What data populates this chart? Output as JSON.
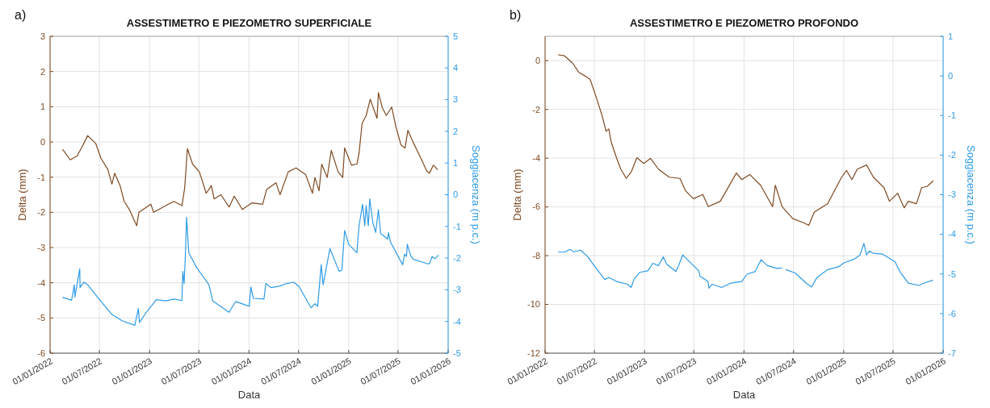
{
  "chart_data": [
    {
      "type": "line",
      "title": "ASSESTIMETRO E PIEZOMETRO SUPERFICIALE",
      "xlabel": "Data",
      "ylabel": "Delta (mm)",
      "y2label": "Soggiacenza (m p.c.)",
      "annotations": [
        "a)"
      ],
      "grid": true,
      "xlim": [
        "2022-01-01",
        "2026-01-01"
      ],
      "xticks": [
        {
          "value": "2022-01-01",
          "label": "01/01/2022"
        },
        {
          "value": "2022-07-01",
          "label": "01/07/2022"
        },
        {
          "value": "2023-01-01",
          "label": "01/01/2023"
        },
        {
          "value": "2023-07-01",
          "label": "01/07/2023"
        },
        {
          "value": "2024-01-01",
          "label": "01/01/2024"
        },
        {
          "value": "2024-07-01",
          "label": "01/07/2024"
        },
        {
          "value": "2025-01-01",
          "label": "01/01/2025"
        },
        {
          "value": "2025-07-01",
          "label": "01/07/2025"
        },
        {
          "value": "2026-01-01",
          "label": "01/01/2026"
        }
      ],
      "ylim": [
        -6,
        3
      ],
      "yticks": [
        -6,
        -5,
        -4,
        -3,
        -2,
        -1,
        0,
        1,
        2,
        3
      ],
      "y2lim": [
        -5,
        5
      ],
      "y2ticks": [
        -5,
        -4,
        -3,
        -2,
        -1,
        0,
        1,
        2,
        3,
        4,
        5
      ],
      "series": [
        {
          "color": "#7f4a22",
          "x": [
            "2022-02-17",
            "2022-03-16",
            "2022-04-10",
            "2022-04-29",
            "2022-05-19",
            "2022-06-18",
            "2022-07-07",
            "2022-08-01",
            "2022-08-16",
            "2022-08-26",
            "2022-09-15",
            "2022-09-30",
            "2022-10-19",
            "2022-11-15",
            "2022-11-23",
            "2023-01-06",
            "2023-01-16",
            "2023-02-20",
            "2023-03-31",
            "2023-04-30",
            "2023-05-10",
            "2023-05-20",
            "2023-06-08",
            "2023-07-03",
            "2023-07-28",
            "2023-08-16",
            "2023-08-26",
            "2023-09-20",
            "2023-10-20",
            "2023-11-08",
            "2023-12-08",
            "2024-01-12",
            "2024-02-20",
            "2024-03-06",
            "2024-04-09",
            "2024-04-24",
            "2024-05-24",
            "2024-06-22",
            "2024-07-27",
            "2024-08-21",
            "2024-08-30",
            "2024-09-14",
            "2024-09-24",
            "2024-10-14",
            "2024-10-29",
            "2024-11-23",
            "2024-12-10",
            "2024-12-17",
            "2025-01-11",
            "2025-01-31",
            "2025-02-08",
            "2025-02-19",
            "2025-03-06",
            "2025-03-21",
            "2025-04-15",
            "2025-04-20",
            "2025-05-04",
            "2025-05-19",
            "2025-06-08",
            "2025-06-23",
            "2025-07-12",
            "2025-07-27",
            "2025-08-06",
            "2025-08-26",
            "2025-09-19",
            "2025-10-14",
            "2025-10-24",
            "2025-11-08",
            "2025-11-23"
          ],
          "values": [
            -0.22,
            -0.51,
            -0.4,
            -0.13,
            0.18,
            -0.05,
            -0.47,
            -0.78,
            -1.2,
            -0.89,
            -1.24,
            -1.69,
            -1.92,
            -2.38,
            -2.0,
            -1.77,
            -2.0,
            -1.85,
            -1.69,
            -1.81,
            -1.31,
            -0.19,
            -0.63,
            -0.85,
            -1.46,
            -1.24,
            -1.62,
            -1.5,
            -1.85,
            -1.54,
            -1.92,
            -1.73,
            -1.77,
            -1.35,
            -1.16,
            -1.5,
            -0.85,
            -0.74,
            -0.93,
            -1.46,
            -1.01,
            -1.39,
            -0.63,
            -1.01,
            -0.24,
            -0.85,
            -1.01,
            -0.17,
            -0.66,
            -0.63,
            -0.32,
            0.52,
            0.75,
            1.21,
            0.67,
            1.4,
            0.98,
            0.75,
            0.99,
            0.44,
            -0.09,
            -0.17,
            0.33,
            -0.02,
            -0.4,
            -0.82,
            -0.89,
            -0.66,
            -0.78
          ]
        },
        {
          "color": "#2e9be6",
          "axis": "y2",
          "x": [
            "2022-02-17",
            "2022-03-21",
            "2022-03-31",
            "2022-04-02",
            "2022-04-20",
            "2022-04-21",
            "2022-05-05",
            "2022-05-19",
            "2022-06-28",
            "2022-08-16",
            "2022-09-25",
            "2022-11-08",
            "2022-11-21",
            "2022-11-25",
            "2022-12-22",
            "2023-01-26",
            "2023-03-01",
            "2023-03-31",
            "2023-04-30",
            "2023-05-03",
            "2023-05-08",
            "2023-05-12",
            "2023-05-17",
            "2023-05-25",
            "2023-06-23",
            "2023-08-07",
            "2023-08-21",
            "2023-10-20",
            "2023-11-13",
            "2024-01-02",
            "2024-01-08",
            "2024-01-17",
            "2024-02-25",
            "2024-03-03",
            "2024-03-21",
            "2024-04-19",
            "2024-05-19",
            "2024-06-13",
            "2024-07-02",
            "2024-08-16",
            "2024-08-30",
            "2024-09-09",
            "2024-09-22",
            "2024-09-29",
            "2024-10-24",
            "2024-11-27",
            "2024-12-07",
            "2024-12-17",
            "2025-01-01",
            "2025-01-31",
            "2025-02-08",
            "2025-02-21",
            "2025-03-01",
            "2025-03-06",
            "2025-03-14",
            "2025-03-19",
            "2025-03-31",
            "2025-04-10",
            "2025-04-20",
            "2025-04-28",
            "2025-05-24",
            "2025-05-27",
            "2025-06-03",
            "2025-07-18",
            "2025-07-25",
            "2025-08-01",
            "2025-08-04",
            "2025-08-16",
            "2025-08-26",
            "2025-10-14",
            "2025-10-24",
            "2025-11-03",
            "2025-11-13",
            "2025-11-26"
          ],
          "values": [
            -3.24,
            -3.33,
            -2.84,
            -3.23,
            -2.34,
            -2.93,
            -2.76,
            -2.84,
            -3.27,
            -3.78,
            -3.99,
            -4.12,
            -3.59,
            -4.03,
            -3.69,
            -3.31,
            -3.35,
            -3.29,
            -3.34,
            -2.42,
            -2.8,
            -2.04,
            -0.71,
            -1.83,
            -2.3,
            -2.84,
            -3.35,
            -3.71,
            -3.37,
            -3.52,
            -2.91,
            -3.27,
            -3.29,
            -2.8,
            -2.93,
            -2.89,
            -2.8,
            -2.76,
            -2.89,
            -3.57,
            -3.44,
            -3.52,
            -2.21,
            -2.84,
            -1.7,
            -2.42,
            -2.38,
            -1.13,
            -1.57,
            -1.83,
            -0.98,
            -0.3,
            -0.98,
            -0.34,
            -0.98,
            -0.13,
            -0.9,
            -1.19,
            -0.47,
            -1.22,
            -1.4,
            -1.19,
            -1.49,
            -2.21,
            -1.87,
            -1.95,
            -1.56,
            -1.91,
            -2.04,
            -2.17,
            -2.18,
            -1.95,
            -2.02,
            -1.91
          ]
        }
      ]
    },
    {
      "type": "line",
      "title": "ASSESTIMETRO E PIEZOMETRO PROFONDO",
      "xlabel": "Data",
      "ylabel": "Delta (mm)",
      "y2label": "Soggiacenza (m p.c.)",
      "annotations": [
        "b)"
      ],
      "grid": true,
      "xlim": [
        "2022-01-01",
        "2026-01-01"
      ],
      "xticks": [
        {
          "value": "2022-01-01",
          "label": "01/01/2022"
        },
        {
          "value": "2022-07-01",
          "label": "01/07/2022"
        },
        {
          "value": "2023-01-01",
          "label": "01/01/2023"
        },
        {
          "value": "2023-07-01",
          "label": "01/07/2023"
        },
        {
          "value": "2024-01-01",
          "label": "01/01/2024"
        },
        {
          "value": "2024-07-01",
          "label": "01/07/2024"
        },
        {
          "value": "2025-01-01",
          "label": "01/01/2025"
        },
        {
          "value": "2025-07-01",
          "label": "01/07/2025"
        },
        {
          "value": "2026-01-01",
          "label": "01/01/2026"
        }
      ],
      "ylim": [
        -12,
        1
      ],
      "yticks": [
        -12,
        -10,
        -8,
        -6,
        -4,
        -2,
        0
      ],
      "y2lim": [
        -7,
        1
      ],
      "y2ticks": [
        -7,
        -6,
        -5,
        -4,
        -3,
        -2,
        -1,
        0,
        1
      ],
      "series": [
        {
          "color": "#7f4a22",
          "x": [
            "2022-02-19",
            "2022-03-13",
            "2022-04-12",
            "2022-05-06",
            "2022-05-31",
            "2022-06-15",
            "2022-07-04",
            "2022-07-29",
            "2022-08-13",
            "2022-08-23",
            "2022-09-01",
            "2022-09-21",
            "2022-10-06",
            "2022-10-26",
            "2022-11-14",
            "2022-12-04",
            "2022-12-29",
            "2023-01-23",
            "2023-02-21",
            "2023-04-02",
            "2023-05-11",
            "2023-05-31",
            "2023-06-29",
            "2023-08-03",
            "2023-08-23",
            "2023-10-06",
            "2023-10-26",
            "2023-12-04",
            "2023-12-24",
            "2024-01-22",
            "2024-03-02",
            "2024-04-15",
            "2024-04-25",
            "2024-05-20",
            "2024-06-28",
            "2024-08-07",
            "2024-08-26",
            "2024-09-15",
            "2024-11-03",
            "2024-11-23",
            "2024-12-22",
            "2025-01-11",
            "2025-01-31",
            "2025-02-20",
            "2025-03-26",
            "2025-04-20",
            "2025-05-29",
            "2025-06-18",
            "2025-07-18",
            "2025-08-11",
            "2025-08-26",
            "2025-09-25",
            "2025-10-14",
            "2025-11-03",
            "2025-11-25"
          ],
          "values": [
            0.24,
            0.2,
            -0.1,
            -0.49,
            -0.65,
            -0.76,
            -1.37,
            -2.24,
            -2.9,
            -2.8,
            -3.35,
            -4.01,
            -4.45,
            -4.83,
            -4.55,
            -3.98,
            -4.22,
            -4.01,
            -4.45,
            -4.78,
            -4.83,
            -5.33,
            -5.66,
            -5.49,
            -5.99,
            -5.77,
            -5.38,
            -4.61,
            -4.88,
            -4.67,
            -5.11,
            -5.99,
            -5.11,
            -5.99,
            -6.48,
            -6.65,
            -6.76,
            -6.21,
            -5.87,
            -5.44,
            -4.83,
            -4.5,
            -4.88,
            -4.45,
            -4.28,
            -4.78,
            -5.21,
            -5.77,
            -5.44,
            -6.04,
            -5.77,
            -5.87,
            -5.21,
            -5.16,
            -4.94
          ]
        },
        {
          "color": "#2e9be6",
          "axis": "y2",
          "x": [
            "2022-02-19",
            "2022-03-13",
            "2022-04-02",
            "2022-04-17",
            "2022-05-11",
            "2022-06-05",
            "2022-06-30",
            "2022-08-08",
            "2022-08-23",
            "2022-09-21",
            "2022-10-31",
            "2022-11-13",
            "2022-11-24",
            "2022-12-14",
            "2023-01-13",
            "2023-02-01",
            "2023-02-21",
            "2023-03-11",
            "2023-03-23",
            "2023-04-26",
            "2023-05-06",
            "2023-05-21",
            "2023-06-09",
            "2023-07-19",
            "2023-07-24",
            "2023-08-22",
            "2023-08-25",
            "2023-09-06",
            "2023-10-11",
            "2023-11-14",
            "2023-12-24",
            "2024-01-13",
            "2024-02-11",
            "2024-03-04",
            "2024-03-27",
            "2024-04-30",
            "2024-05-18",
            "2024-05-26",
            "2024-06-03",
            "2024-07-08",
            "2024-08-16",
            "2024-09-05",
            "2024-09-25",
            "2024-11-03",
            "2024-12-13",
            "2025-01-02",
            "2025-02-10",
            "2025-03-02",
            "2025-03-16",
            "2025-03-26",
            "2025-04-05",
            "2025-04-20",
            "2025-05-24",
            "2025-07-08",
            "2025-07-28",
            "2025-08-26",
            "2025-10-04",
            "2025-10-24",
            "2025-11-23"
          ],
          "values": [
            -4.44,
            -4.45,
            -4.38,
            -4.44,
            -4.4,
            -4.55,
            -4.79,
            -5.14,
            -5.09,
            -5.19,
            -5.26,
            -5.34,
            -5.13,
            -4.96,
            -4.92,
            -4.73,
            -4.79,
            -4.57,
            -4.75,
            -4.94,
            -4.79,
            -4.52,
            -4.65,
            -4.92,
            -5.06,
            -5.19,
            -5.36,
            -5.26,
            -5.34,
            -5.23,
            -5.19,
            -5.0,
            -4.94,
            -4.64,
            -4.79,
            -4.86,
            -4.85,
            null,
            -4.89,
            -4.98,
            -5.23,
            -5.33,
            -5.09,
            -4.89,
            -4.82,
            -4.72,
            -4.62,
            -4.52,
            -4.23,
            -4.52,
            -4.42,
            -4.48,
            -4.5,
            -4.69,
            -4.96,
            -5.23,
            -5.29,
            -5.23,
            -5.16
          ]
        }
      ]
    }
  ]
}
